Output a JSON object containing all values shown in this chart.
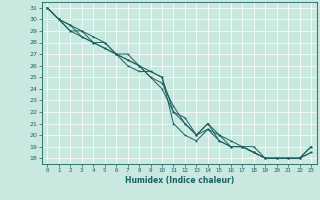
{
  "xlabel": "Humidex (Indice chaleur)",
  "xlim": [
    -0.5,
    23.5
  ],
  "ylim": [
    17.5,
    31.5
  ],
  "yticks": [
    18,
    19,
    20,
    21,
    22,
    23,
    24,
    25,
    26,
    27,
    28,
    29,
    30,
    31
  ],
  "xticks": [
    0,
    1,
    2,
    3,
    4,
    5,
    6,
    7,
    8,
    9,
    10,
    11,
    12,
    13,
    14,
    15,
    16,
    17,
    18,
    19,
    20,
    21,
    22,
    23
  ],
  "bg_color": "#c8e8e0",
  "line_color": "#1a6060",
  "grid_color": "#ffffff",
  "lines": [
    [
      31,
      30,
      29,
      29,
      28,
      28,
      27,
      27,
      26,
      25,
      24,
      22,
      21,
      20,
      21,
      20,
      19,
      19,
      19,
      18,
      18,
      18,
      18,
      18.5
    ],
    [
      31,
      30,
      29,
      28.5,
      28,
      27.5,
      27,
      26.5,
      26,
      25.5,
      25,
      21,
      20,
      19.5,
      20.5,
      19.5,
      19,
      19,
      18.5,
      18,
      18,
      18,
      18,
      19
    ],
    [
      31,
      30,
      29.5,
      29,
      28.5,
      28,
      27,
      26.5,
      26,
      25,
      24.5,
      22.5,
      21,
      20,
      20.5,
      20,
      19.5,
      19,
      18.5,
      18,
      18,
      18,
      18,
      18.5
    ],
    [
      31,
      30,
      29.5,
      28.5,
      28,
      27.5,
      27,
      26,
      25.5,
      25.5,
      25,
      22,
      21.5,
      20,
      21,
      19.5,
      19,
      19,
      18.5,
      18,
      18,
      18,
      18,
      19
    ]
  ]
}
